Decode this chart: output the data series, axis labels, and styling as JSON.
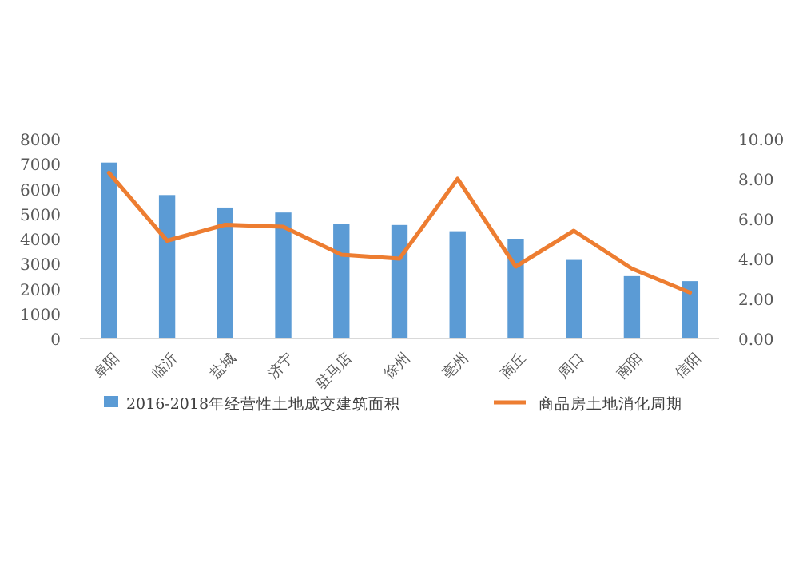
{
  "chart_data": {
    "type": "bar",
    "categories": [
      "阜阳",
      "临沂",
      "盐城",
      "济宁",
      "驻马店",
      "徐州",
      "亳州",
      "商丘",
      "周口",
      "南阳",
      "信阳"
    ],
    "series": [
      {
        "name": "2016-2018年经营性土地成交建筑面积",
        "color": "#5b9bd5",
        "values": [
          7050,
          5750,
          5250,
          5050,
          4600,
          4550,
          4300,
          4000,
          3150,
          2500,
          2300
        ]
      },
      {
        "name": "商品房土地消化周期",
        "type": "line",
        "axis": "y2",
        "color": "#ed7d31",
        "values": [
          8.3,
          4.9,
          5.7,
          5.6,
          4.2,
          4.0,
          8.0,
          3.6,
          5.4,
          3.5,
          2.3
        ]
      }
    ],
    "ylim": [
      0,
      8000
    ],
    "yticks": [
      0,
      1000,
      2000,
      3000,
      4000,
      5000,
      6000,
      7000,
      8000
    ],
    "y2lim": [
      0,
      10
    ],
    "y2ticks": [
      {
        "value": 0,
        "label": "0.00"
      },
      {
        "value": 2,
        "label": "2.00"
      },
      {
        "value": 4,
        "label": "4.00"
      },
      {
        "value": 6,
        "label": "6.00"
      },
      {
        "value": 8,
        "label": "8.00"
      },
      {
        "value": 10,
        "label": "10.00"
      }
    ],
    "legend": "bottom",
    "grid": false,
    "marker": "none"
  }
}
